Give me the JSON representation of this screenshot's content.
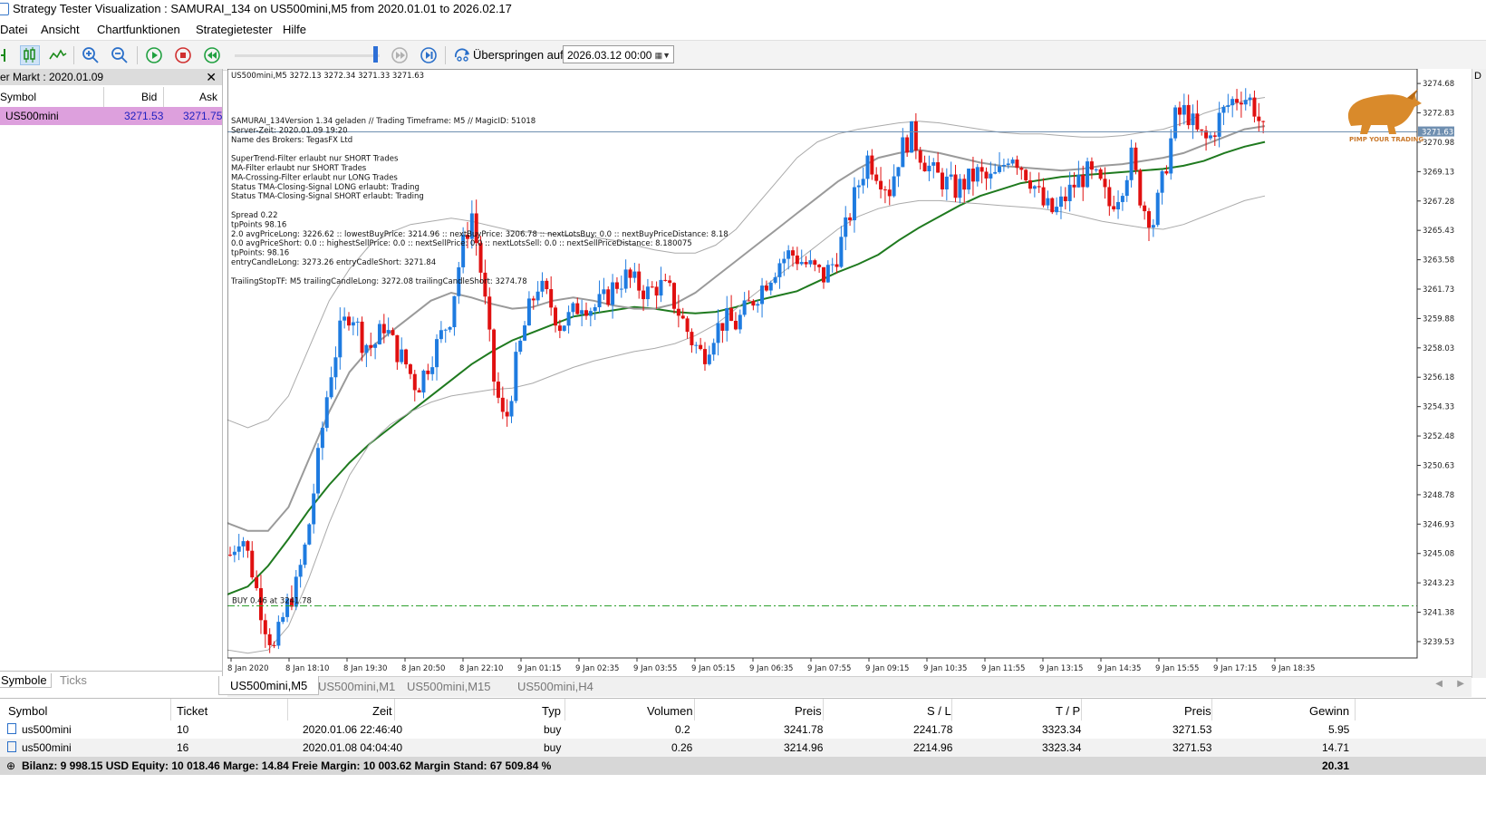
{
  "window": {
    "title": "Strategy Tester Visualization : SAMURAI_134 on US500mini,M5 from 2020.01.01 to 2026.02.17"
  },
  "menu": {
    "items": [
      "Datei",
      "Ansicht",
      "Chartfunktionen",
      "Strategietester",
      "Hilfe"
    ]
  },
  "toolbar": {
    "skip_label": "Überspringen auf",
    "skip_date": "2026.03.12 00:00",
    "slider_progress": 0.95
  },
  "market_watch": {
    "title": "er Markt : 2020.01.09",
    "columns": {
      "symbol": "Symbol",
      "bid": "Bid",
      "ask": "Ask"
    },
    "rows": [
      {
        "symbol": "US500mini",
        "bid": "3271.53",
        "ask": "3271.75"
      }
    ],
    "tabs": [
      "Symbole",
      "Ticks"
    ]
  },
  "chart": {
    "header": "US500mini,M5  3272.13 3272.34 3271.33 3271.63",
    "info_lines": [
      "SAMURAI_134Version 1.34 geladen // Trading Timeframe: M5 // MagicID: 51018",
      "Server-Zeit: 2020.01.09 19:20",
      "Name des Brokers: TegasFX Ltd",
      "",
      "SuperTrend-Filter erlaubt nur SHORT Trades",
      "MA-Filter erlaubt nur SHORT Trades",
      "MA-Crossing-Filter erlaubt nur LONG Trades",
      "Status TMA-Closing-Signal LONG erlaubt: Trading",
      "Status TMA-Closing-Signal SHORT erlaubt: Trading",
      "",
      " Spread 0.22",
      " tpPoints 98.16",
      " 2.0  avgPriceLong: 3226.62  ::  lowestBuyPrice:  3214.96  ::  nextBuyPrice:  3206.78  ::  nextLotsBuy: 0.0  ::  nextBuyPriceDistance: 8.18",
      " 0.0  avgPriceShort: 0.0  ::  highestSellPrice:  0.0  ::  nextSellPrice:  0.0  ::  nextLotsSell:  0.0  ::  nextSellPriceDistance: 8.180075",
      " tpPoints: 98.16",
      " entryCandleLong: 3273.26 entryCadleShort: 3271.84",
      "",
      " TrailingStopTF: M5 trailingCandleLong: 3272.08 trailingCandleShort: 3274.78"
    ],
    "buy_line_label": "BUY 0.46 at 3241.78",
    "current_price_tag": "3271.63",
    "logo_text": "PIMP YOUR TRADING",
    "tabs": [
      "US500mini,M5",
      "US500mini,M1",
      "US500mini,M15",
      "US500mini,H4"
    ]
  },
  "chart_data": {
    "type": "candlestick",
    "symbol": "US500mini",
    "timeframe": "M5",
    "ylim": [
      3238.5,
      3275.6
    ],
    "y_ticks": [
      "3274.68",
      "3272.83",
      "3270.98",
      "3269.13",
      "3267.28",
      "3265.43",
      "3263.58",
      "3261.73",
      "3259.88",
      "3258.03",
      "3256.18",
      "3254.33",
      "3252.48",
      "3250.63",
      "3248.78",
      "3246.93",
      "3245.08",
      "3243.23",
      "3241.38",
      "3239.53"
    ],
    "x_ticks": [
      "8 Jan 2020",
      "8 Jan 18:10",
      "8 Jan 19:30",
      "8 Jan 20:50",
      "8 Jan 22:10",
      "9 Jan 01:15",
      "9 Jan 02:35",
      "9 Jan 03:55",
      "9 Jan 05:15",
      "9 Jan 06:35",
      "9 Jan 07:55",
      "9 Jan 09:15",
      "9 Jan 10:35",
      "9 Jan 11:55",
      "9 Jan 13:15",
      "9 Jan 14:35",
      "9 Jan 15:55",
      "9 Jan 17:15",
      "9 Jan 18:35"
    ],
    "close_path": [
      3245.0,
      3246.5,
      3244.0,
      3241.0,
      3239.0,
      3241.5,
      3243.0,
      3246.0,
      3251.0,
      3256.0,
      3259.0,
      3260.5,
      3258.5,
      3258.0,
      3259.5,
      3258.0,
      3257.0,
      3255.5,
      3257.0,
      3258.5,
      3260.0,
      3264.0,
      3266.5,
      3262.0,
      3256.0,
      3253.0,
      3257.0,
      3260.0,
      3262.0,
      3261.0,
      3259.5,
      3260.0,
      3261.0,
      3260.5,
      3261.0,
      3262.0,
      3262.5,
      3262.0,
      3261.5,
      3262.0,
      3261.5,
      3260.0,
      3258.5,
      3257.5,
      3259.0,
      3259.8,
      3259.5,
      3260.5,
      3261.5,
      3262.5,
      3263.5,
      3264.0,
      3263.5,
      3263.0,
      3262.5,
      3263.5,
      3265.5,
      3268.0,
      3270.0,
      3269.0,
      3268.0,
      3270.5,
      3271.5,
      3270.0,
      3269.0,
      3268.5,
      3268.0,
      3268.5,
      3269.0,
      3268.5,
      3269.0,
      3270.5,
      3269.5,
      3268.5,
      3267.0,
      3266.5,
      3267.5,
      3268.5,
      3269.0,
      3268.5,
      3267.0,
      3268.0,
      3270.0,
      3267.0,
      3266.0,
      3269.0,
      3272.5,
      3273.0,
      3271.5,
      3271.0,
      3272.5,
      3273.5,
      3274.0,
      3273.5,
      3271.6
    ],
    "lines": [
      {
        "color": "#1f7a1f",
        "values": [
          3242.5,
          3243.0,
          3244.3,
          3246.0,
          3247.8,
          3249.4,
          3250.8,
          3252.0,
          3253.0,
          3254.0,
          3255.0,
          3256.0,
          3257.0,
          3257.8,
          3258.5,
          3259.0,
          3259.5,
          3260.0,
          3260.2,
          3260.4,
          3260.6,
          3260.5,
          3260.3,
          3260.2,
          3260.3,
          3260.6,
          3261.0,
          3261.3,
          3261.6,
          3262.2,
          3262.8,
          3263.3,
          3263.9,
          3264.8,
          3265.6,
          3266.3,
          3267.0,
          3267.6,
          3268.0,
          3268.4,
          3268.6,
          3268.8,
          3268.9,
          3269.0,
          3269.1,
          3269.2,
          3269.3,
          3269.5,
          3269.8,
          3270.3,
          3270.7,
          3271.0
        ]
      },
      {
        "color": "#9a9a9a",
        "values": [
          3247.0,
          3246.5,
          3246.5,
          3248.0,
          3251.0,
          3254.0,
          3256.5,
          3258.0,
          3259.0,
          3260.0,
          3261.0,
          3261.5,
          3261.2,
          3260.8,
          3260.5,
          3260.6,
          3261.0,
          3261.2,
          3261.0,
          3260.7,
          3260.5,
          3260.5,
          3260.8,
          3261.5,
          3262.5,
          3263.5,
          3264.5,
          3265.5,
          3266.5,
          3267.5,
          3268.5,
          3269.3,
          3270.0,
          3270.3,
          3270.5,
          3270.3,
          3270.0,
          3269.7,
          3269.5,
          3269.4,
          3269.3,
          3269.2,
          3269.3,
          3269.5,
          3269.6,
          3269.8,
          3270.0,
          3270.3,
          3270.8,
          3271.3,
          3271.8,
          3272.0
        ]
      },
      {
        "color": "#aaaaaa",
        "values": [
          3253.5,
          3253.0,
          3253.5,
          3255.0,
          3258.0,
          3261.0,
          3263.0,
          3264.5,
          3265.3,
          3265.8,
          3266.0,
          3266.2,
          3266.0,
          3265.7,
          3265.4,
          3265.3,
          3265.2,
          3265.1,
          3265.0,
          3264.8,
          3264.5,
          3264.2,
          3264.0,
          3264.0,
          3264.5,
          3265.5,
          3267.0,
          3268.5,
          3270.0,
          3271.0,
          3271.5,
          3271.8,
          3272.0,
          3272.2,
          3272.3,
          3272.2,
          3272.0,
          3271.8,
          3271.6,
          3271.5,
          3271.5,
          3271.4,
          3271.3,
          3271.3,
          3271.4,
          3271.6,
          3271.8,
          3272.2,
          3272.8,
          3273.2,
          3273.6,
          3273.8
        ]
      },
      {
        "color": "#aaaaaa",
        "values": [
          3239.0,
          3238.8,
          3239.0,
          3240.5,
          3243.5,
          3247.0,
          3250.0,
          3252.0,
          3253.2,
          3254.0,
          3254.6,
          3255.0,
          3255.2,
          3255.4,
          3255.5,
          3255.8,
          3256.3,
          3256.8,
          3257.2,
          3257.5,
          3257.8,
          3258.0,
          3258.3,
          3258.8,
          3259.5,
          3260.5,
          3261.5,
          3262.5,
          3263.5,
          3264.5,
          3265.5,
          3266.3,
          3266.8,
          3267.1,
          3267.3,
          3267.3,
          3267.2,
          3267.1,
          3267.0,
          3266.9,
          3266.8,
          3266.6,
          3266.3,
          3266.0,
          3265.8,
          3265.6,
          3265.5,
          3265.8,
          3266.3,
          3266.8,
          3267.3,
          3267.6
        ]
      }
    ],
    "hlines": [
      {
        "label": "BUY 0.46 at 3241.78",
        "y": 3241.78,
        "color": "#2ca02c",
        "style": "dash-dot"
      },
      {
        "label": "current",
        "y": 3271.63,
        "color": "#6f8fb0",
        "style": "solid"
      }
    ],
    "colors": {
      "bull": "#1e7be0",
      "bear": "#e01010"
    }
  },
  "trades": {
    "columns": [
      "Symbol",
      "Ticket",
      "Zeit",
      "Typ",
      "Volumen",
      "Preis",
      "S / L",
      "T / P",
      "Preis",
      "Gewinn"
    ],
    "rows": [
      {
        "symbol": "us500mini",
        "ticket": "10",
        "zeit": "2020.01.06 22:46:40",
        "typ": "buy",
        "volumen": "0.2",
        "preis": "3241.78",
        "sl": "2241.78",
        "tp": "3323.34",
        "preis2": "3271.53",
        "gewinn": "5.95"
      },
      {
        "symbol": "us500mini",
        "ticket": "16",
        "zeit": "2020.01.08 04:04:40",
        "typ": "buy",
        "volumen": "0.26",
        "preis": "3214.96",
        "sl": "2214.96",
        "tp": "3323.34",
        "preis2": "3271.53",
        "gewinn": "14.71"
      }
    ],
    "balance_text": "Bilanz: 9 998.15 USD  Equity: 10 018.46  Marge: 14.84  Freie Margin: 10 003.62  Margin Stand: 67 509.84 %",
    "total_profit": "20.31"
  }
}
